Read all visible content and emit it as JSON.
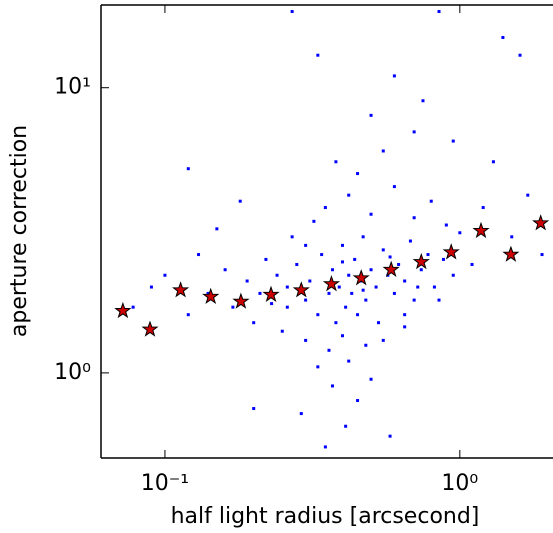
{
  "chart_data": {
    "type": "scatter",
    "xlabel": "half light radius [arcsecond]",
    "ylabel": "aperture correction",
    "xscale": "log",
    "yscale": "log",
    "xlim": [
      0.0607,
      2.07
    ],
    "ylim": [
      0.503,
      19.5
    ],
    "xticks": [
      {
        "value": 0.1,
        "label": "10⁻¹"
      },
      {
        "value": 1,
        "label": "10⁰"
      }
    ],
    "yticks": [
      {
        "value": 1,
        "label": "10⁰"
      },
      {
        "value": 10,
        "label": "10¹"
      }
    ],
    "series": [
      {
        "marker": "square",
        "color": "#0000ff",
        "x": [
          0.21,
          0.24,
          0.26,
          0.28,
          0.3,
          0.31,
          0.33,
          0.34,
          0.36,
          0.37,
          0.38,
          0.39,
          0.4,
          0.41,
          0.42,
          0.43,
          0.44,
          0.45,
          0.46,
          0.47,
          0.48,
          0.5,
          0.52,
          0.53,
          0.55,
          0.57,
          0.6,
          0.62,
          0.65,
          0.68,
          0.7,
          0.74,
          0.78,
          0.82,
          0.88,
          0.95,
          1.0,
          1.1,
          0.17,
          0.19,
          0.2,
          0.22,
          0.16,
          0.14,
          0.13,
          0.12,
          0.1,
          0.27,
          0.32,
          0.35,
          0.42,
          0.5,
          0.6,
          0.45,
          0.55,
          0.38,
          0.7,
          0.8,
          0.9,
          1.2,
          0.3,
          0.36,
          0.4,
          0.48,
          0.25,
          0.55,
          0.65,
          0.42,
          0.33,
          0.5,
          0.37,
          0.45,
          0.29,
          0.41,
          0.58,
          0.35,
          0.75,
          0.6,
          0.33,
          0.27,
          0.85,
          1.4,
          1.6,
          0.5,
          0.7,
          0.95,
          1.3,
          1.7,
          0.15,
          0.18,
          0.12,
          0.09,
          0.078,
          0.2,
          1.9,
          1.5,
          0.65,
          0.72,
          0.85,
          0.3,
          0.26,
          0.23,
          0.4,
          0.47,
          0.58
        ],
        "y": [
          1.9,
          2.2,
          1.7,
          2.4,
          1.8,
          2.1,
          1.6,
          2.6,
          1.9,
          2.3,
          1.5,
          2.0,
          2.8,
          1.7,
          2.2,
          1.9,
          2.5,
          1.6,
          2.1,
          3.0,
          1.8,
          2.3,
          2.0,
          1.5,
          2.7,
          2.2,
          1.9,
          2.4,
          2.1,
          2.9,
          1.8,
          2.3,
          2.6,
          2.0,
          2.5,
          2.2,
          3.1,
          2.4,
          1.7,
          2.1,
          1.5,
          2.5,
          2.3,
          1.9,
          2.6,
          1.6,
          2.2,
          3.0,
          3.4,
          3.8,
          4.2,
          3.6,
          4.5,
          5.0,
          6.0,
          5.5,
          3.5,
          4.0,
          3.3,
          3.8,
          1.3,
          1.2,
          1.35,
          1.25,
          1.4,
          1.3,
          1.45,
          1.1,
          1.05,
          0.95,
          0.9,
          0.8,
          0.72,
          0.65,
          0.6,
          0.55,
          9.0,
          11.0,
          13.0,
          18.5,
          18.5,
          15.0,
          13.0,
          8.0,
          7.0,
          6.5,
          5.5,
          4.2,
          3.2,
          4.0,
          5.2,
          2.0,
          1.7,
          0.75,
          2.6,
          3.0,
          1.6,
          2.0,
          1.8,
          2.8,
          2.0,
          1.75,
          2.45,
          1.95,
          2.55
        ]
      },
      {
        "marker": "star",
        "color": "#cc0000",
        "x": [
          0.072,
          0.089,
          0.113,
          0.143,
          0.181,
          0.229,
          0.29,
          0.367,
          0.463,
          0.585,
          0.74,
          0.935,
          1.18,
          1.49,
          1.88
        ],
        "y": [
          1.65,
          1.42,
          1.95,
          1.85,
          1.78,
          1.88,
          1.95,
          2.05,
          2.15,
          2.3,
          2.45,
          2.65,
          3.15,
          2.6,
          3.35
        ]
      }
    ]
  }
}
